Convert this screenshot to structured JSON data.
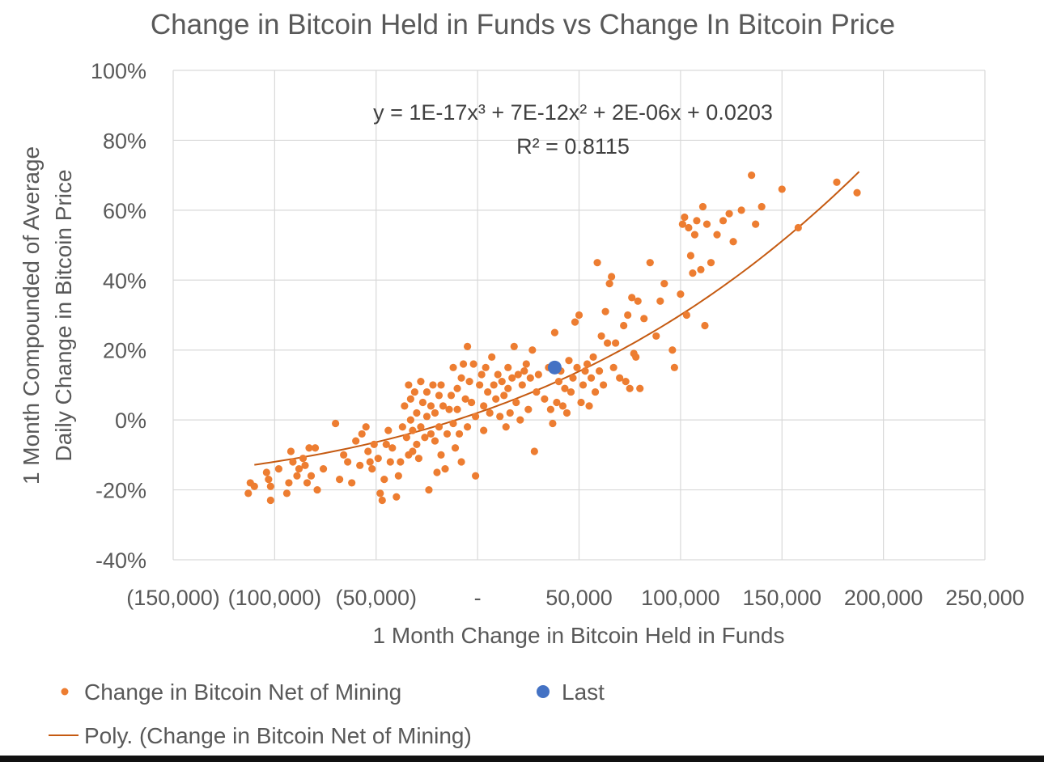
{
  "chart_data": {
    "type": "scatter",
    "title": "Change in Bitcoin Held in Funds vs Change In Bitcoin Price",
    "xlabel": "1 Month Change in Bitcoin Held in Funds",
    "ylabel": [
      "1 Month Compounded of Average",
      "Daily Change in Bitcoin Price"
    ],
    "xlim": [
      -150000,
      250000
    ],
    "ylim": [
      -0.4,
      1.0
    ],
    "x_ticks": [
      {
        "value": -150000,
        "label": "(150,000)"
      },
      {
        "value": -100000,
        "label": "(100,000)"
      },
      {
        "value": -50000,
        "label": "(50,000)"
      },
      {
        "value": 0,
        "label": "-"
      },
      {
        "value": 50000,
        "label": "50,000"
      },
      {
        "value": 100000,
        "label": "100,000"
      },
      {
        "value": 150000,
        "label": "150,000"
      },
      {
        "value": 200000,
        "label": "200,000"
      },
      {
        "value": 250000,
        "label": "250,000"
      }
    ],
    "y_ticks": [
      {
        "value": 1.0,
        "label": "100%"
      },
      {
        "value": 0.8,
        "label": "80%"
      },
      {
        "value": 0.6,
        "label": "60%"
      },
      {
        "value": 0.4,
        "label": "40%"
      },
      {
        "value": 0.2,
        "label": "20%"
      },
      {
        "value": 0.0,
        "label": "0%"
      },
      {
        "value": -0.2,
        "label": "-20%"
      },
      {
        "value": -0.4,
        "label": "-40%"
      }
    ],
    "equation": "y = 1E-17x³ + 7E-12x² + 2E-06x + 0.0203",
    "r_squared": "R² = 0.8115",
    "series": [
      {
        "name": "Change in Bitcoin Net of Mining",
        "kind": "scatter",
        "color": "#ed7d31",
        "points": [
          [
            -113000,
            -0.21
          ],
          [
            -112000,
            -0.18
          ],
          [
            -110000,
            -0.19
          ],
          [
            -104000,
            -0.15
          ],
          [
            -103000,
            -0.17
          ],
          [
            -102000,
            -0.19
          ],
          [
            -102000,
            -0.23
          ],
          [
            -98000,
            -0.14
          ],
          [
            -94000,
            -0.21
          ],
          [
            -93000,
            -0.18
          ],
          [
            -92000,
            -0.09
          ],
          [
            -91000,
            -0.12
          ],
          [
            -89000,
            -0.16
          ],
          [
            -88000,
            -0.14
          ],
          [
            -86000,
            -0.11
          ],
          [
            -85000,
            -0.13
          ],
          [
            -84000,
            -0.18
          ],
          [
            -83000,
            -0.08
          ],
          [
            -82000,
            -0.16
          ],
          [
            -80000,
            -0.08
          ],
          [
            -79000,
            -0.2
          ],
          [
            -76000,
            -0.14
          ],
          [
            -70000,
            -0.01
          ],
          [
            -68000,
            -0.17
          ],
          [
            -66000,
            -0.1
          ],
          [
            -64000,
            -0.12
          ],
          [
            -62000,
            -0.18
          ],
          [
            -60000,
            -0.06
          ],
          [
            -58000,
            -0.13
          ],
          [
            -57000,
            -0.04
          ],
          [
            -55000,
            -0.02
          ],
          [
            -54000,
            -0.09
          ],
          [
            -53000,
            -0.12
          ],
          [
            -52000,
            -0.14
          ],
          [
            -51000,
            -0.07
          ],
          [
            -49000,
            -0.11
          ],
          [
            -48000,
            -0.21
          ],
          [
            -47000,
            -0.23
          ],
          [
            -46000,
            -0.17
          ],
          [
            -45000,
            -0.07
          ],
          [
            -44000,
            -0.03
          ],
          [
            -43000,
            -0.12
          ],
          [
            -42000,
            -0.08
          ],
          [
            -40000,
            -0.22
          ],
          [
            -39000,
            -0.16
          ],
          [
            -38000,
            -0.12
          ],
          [
            -37000,
            -0.02
          ],
          [
            -36000,
            0.04
          ],
          [
            -35000,
            -0.05
          ],
          [
            -34000,
            0.1
          ],
          [
            -34000,
            -0.1
          ],
          [
            -33000,
            0.0
          ],
          [
            -33000,
            0.06
          ],
          [
            -32000,
            -0.03
          ],
          [
            -32000,
            -0.09
          ],
          [
            -31000,
            0.08
          ],
          [
            -30000,
            -0.07
          ],
          [
            -30000,
            0.02
          ],
          [
            -29000,
            -0.11
          ],
          [
            -28000,
            0.11
          ],
          [
            -28000,
            -0.02
          ],
          [
            -27000,
            0.05
          ],
          [
            -26000,
            -0.05
          ],
          [
            -25000,
            0.08
          ],
          [
            -25000,
            0.01
          ],
          [
            -24000,
            -0.2
          ],
          [
            -23000,
            -0.04
          ],
          [
            -23000,
            0.04
          ],
          [
            -22000,
            0.1
          ],
          [
            -21000,
            -0.06
          ],
          [
            -21000,
            0.02
          ],
          [
            -20000,
            -0.15
          ],
          [
            -19000,
            0.07
          ],
          [
            -19000,
            -0.02
          ],
          [
            -18000,
            0.1
          ],
          [
            -18000,
            -0.1
          ],
          [
            -17000,
            0.04
          ],
          [
            -16000,
            -0.14
          ],
          [
            -15000,
            -0.04
          ],
          [
            -14000,
            0.03
          ],
          [
            -13000,
            0.07
          ],
          [
            -12000,
            -0.01
          ],
          [
            -12000,
            0.15
          ],
          [
            -11000,
            -0.08
          ],
          [
            -10000,
            0.09
          ],
          [
            -10000,
            0.03
          ],
          [
            -9000,
            -0.04
          ],
          [
            -8000,
            -0.12
          ],
          [
            -8000,
            0.12
          ],
          [
            -7000,
            0.16
          ],
          [
            -6000,
            0.06
          ],
          [
            -5000,
            0.21
          ],
          [
            -5000,
            -0.02
          ],
          [
            -4000,
            0.11
          ],
          [
            -3000,
            0.05
          ],
          [
            -2000,
            0.16
          ],
          [
            -1000,
            -0.16
          ],
          [
            -1000,
            0.01
          ],
          [
            1000,
            0.1
          ],
          [
            2000,
            0.13
          ],
          [
            3000,
            0.04
          ],
          [
            3000,
            -0.03
          ],
          [
            4000,
            0.15
          ],
          [
            5000,
            0.08
          ],
          [
            6000,
            0.02
          ],
          [
            7000,
            0.18
          ],
          [
            8000,
            0.1
          ],
          [
            9000,
            0.06
          ],
          [
            10000,
            0.13
          ],
          [
            11000,
            0.01
          ],
          [
            12000,
            0.11
          ],
          [
            13000,
            0.07
          ],
          [
            14000,
            -0.02
          ],
          [
            15000,
            0.15
          ],
          [
            15000,
            0.09
          ],
          [
            16000,
            0.02
          ],
          [
            17000,
            0.12
          ],
          [
            18000,
            0.21
          ],
          [
            19000,
            0.05
          ],
          [
            20000,
            0.13
          ],
          [
            21000,
            0.0
          ],
          [
            22000,
            0.1
          ],
          [
            23000,
            0.14
          ],
          [
            24000,
            0.16
          ],
          [
            25000,
            0.03
          ],
          [
            26000,
            0.12
          ],
          [
            27000,
            0.2
          ],
          [
            28000,
            -0.09
          ],
          [
            29000,
            0.08
          ],
          [
            30000,
            0.13
          ],
          [
            33000,
            0.06
          ],
          [
            35000,
            0.15
          ],
          [
            36000,
            0.03
          ],
          [
            37000,
            -0.01
          ],
          [
            38000,
            0.25
          ],
          [
            39000,
            0.05
          ],
          [
            40000,
            0.11
          ],
          [
            41000,
            0.14
          ],
          [
            42000,
            0.04
          ],
          [
            43000,
            0.09
          ],
          [
            44000,
            0.02
          ],
          [
            45000,
            0.17
          ],
          [
            46000,
            0.08
          ],
          [
            47000,
            0.12
          ],
          [
            48000,
            0.28
          ],
          [
            49000,
            0.15
          ],
          [
            50000,
            0.3
          ],
          [
            51000,
            0.05
          ],
          [
            52000,
            0.1
          ],
          [
            53000,
            0.14
          ],
          [
            54000,
            0.16
          ],
          [
            55000,
            0.04
          ],
          [
            56000,
            0.12
          ],
          [
            57000,
            0.18
          ],
          [
            58000,
            0.08
          ],
          [
            59000,
            0.45
          ],
          [
            60000,
            0.14
          ],
          [
            61000,
            0.24
          ],
          [
            62000,
            0.1
          ],
          [
            63000,
            0.31
          ],
          [
            64000,
            0.22
          ],
          [
            65000,
            0.39
          ],
          [
            66000,
            0.41
          ],
          [
            67000,
            0.15
          ],
          [
            68000,
            0.22
          ],
          [
            70000,
            0.12
          ],
          [
            72000,
            0.27
          ],
          [
            73000,
            0.11
          ],
          [
            74000,
            0.3
          ],
          [
            75000,
            0.09
          ],
          [
            76000,
            0.35
          ],
          [
            77000,
            0.19
          ],
          [
            78000,
            0.18
          ],
          [
            79000,
            0.34
          ],
          [
            80000,
            0.09
          ],
          [
            82000,
            0.29
          ],
          [
            85000,
            0.45
          ],
          [
            88000,
            0.24
          ],
          [
            90000,
            0.34
          ],
          [
            92000,
            0.39
          ],
          [
            96000,
            0.2
          ],
          [
            97000,
            0.15
          ],
          [
            100000,
            0.36
          ],
          [
            101000,
            0.56
          ],
          [
            102000,
            0.58
          ],
          [
            103000,
            0.3
          ],
          [
            104000,
            0.55
          ],
          [
            105000,
            0.47
          ],
          [
            106000,
            0.42
          ],
          [
            107000,
            0.53
          ],
          [
            108000,
            0.57
          ],
          [
            110000,
            0.43
          ],
          [
            111000,
            0.61
          ],
          [
            112000,
            0.27
          ],
          [
            113000,
            0.56
          ],
          [
            115000,
            0.45
          ],
          [
            118000,
            0.53
          ],
          [
            121000,
            0.57
          ],
          [
            124000,
            0.59
          ],
          [
            126000,
            0.51
          ],
          [
            130000,
            0.6
          ],
          [
            135000,
            0.7
          ],
          [
            137000,
            0.56
          ],
          [
            140000,
            0.61
          ],
          [
            150000,
            0.66
          ],
          [
            158000,
            0.55
          ],
          [
            177000,
            0.68
          ],
          [
            187000,
            0.65
          ]
        ]
      },
      {
        "name": "Last",
        "kind": "scatter",
        "color": "#4472c4",
        "points": [
          [
            38000,
            0.15
          ]
        ]
      },
      {
        "name": "Poly. (Change in Bitcoin Net of Mining)",
        "kind": "trendline",
        "color": "#c55a11",
        "coefficients": [
          1e-17,
          7e-12,
          2e-06,
          0.0203
        ],
        "x_range": [
          -110000,
          188000
        ]
      }
    ],
    "legend": [
      {
        "label": "Change in Bitcoin Net of Mining",
        "marker": "dot",
        "color": "#ed7d31"
      },
      {
        "label": "Last",
        "marker": "dot-large",
        "color": "#4472c4"
      },
      {
        "label": "Poly. (Change in Bitcoin Net of Mining)",
        "marker": "line",
        "color": "#c55a11"
      }
    ],
    "legend_position": "bottom"
  }
}
